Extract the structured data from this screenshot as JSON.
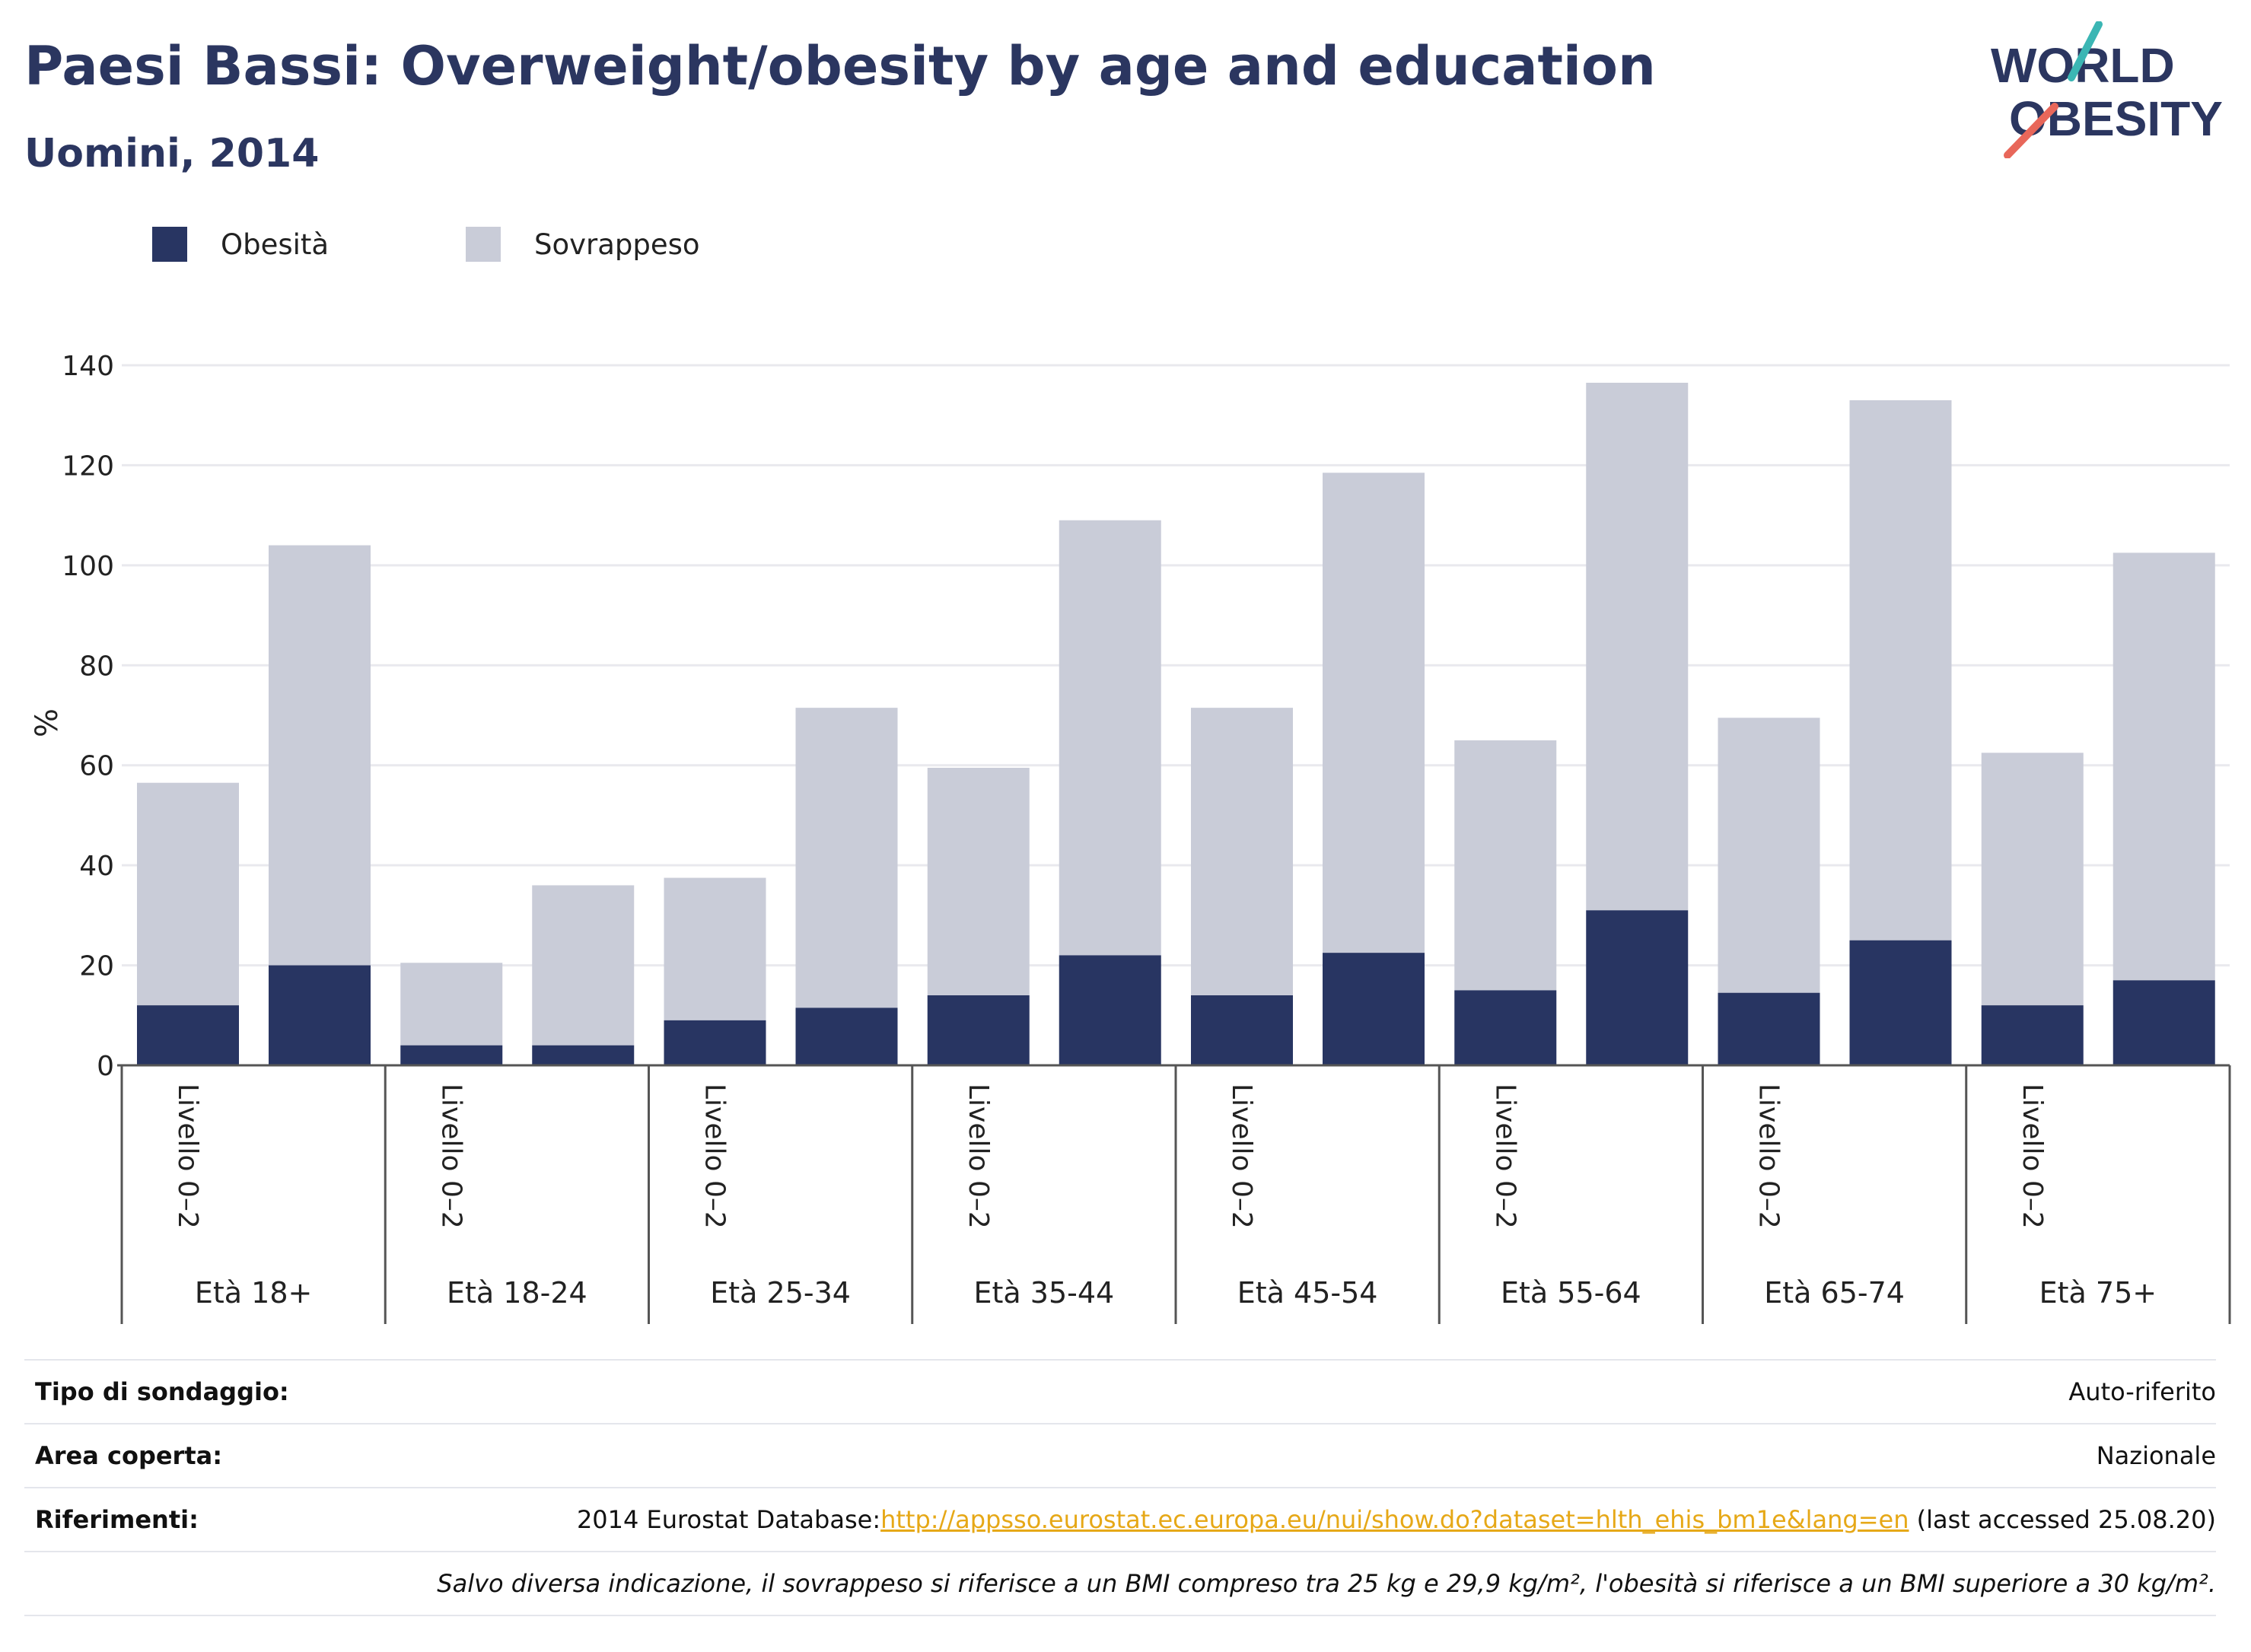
{
  "title": "Paesi Bassi: Overweight/obesity by age and education",
  "subtitle": "Uomini, 2014",
  "logo": {
    "line1": "WORLD",
    "line2": "OBESITY"
  },
  "colors": {
    "obesity": "#283562",
    "overweight": "#c9ccd8",
    "accent_teal": "#3bb6b4",
    "accent_coral": "#e8675a",
    "link": "#e6a817"
  },
  "legend": [
    {
      "label": "Obesità",
      "color": "#283562"
    },
    {
      "label": "Sovrappeso",
      "color": "#c9ccd8"
    }
  ],
  "chart_data": {
    "type": "bar",
    "stacked": true,
    "ylabel": "%",
    "ylim": [
      0,
      140
    ],
    "yticks": [
      0,
      20,
      40,
      60,
      80,
      100,
      120,
      140
    ],
    "grid": true,
    "legend_position": "top-left",
    "groups": [
      "Età 18+",
      "Età 18-24",
      "Età 25-34",
      "Età 35-44",
      "Età 45-54",
      "Età 55-64",
      "Età 65-74",
      "Età 75+"
    ],
    "categories": [
      "Livello 0–2",
      "",
      "Livello 0–2",
      "",
      "Livello 0–2",
      "",
      "Livello 0–2",
      "",
      "Livello 0–2",
      "",
      "Livello 0–2",
      "",
      "Livello 0–2",
      "",
      "Livello 0–2",
      ""
    ],
    "series": [
      {
        "name": "Obesità",
        "values": [
          12,
          20,
          4,
          4,
          9,
          11.5,
          14,
          22,
          14,
          22.5,
          15,
          31,
          14.5,
          25,
          12,
          17
        ]
      },
      {
        "name": "Sovrappeso",
        "values": [
          44.5,
          84,
          16.5,
          32,
          28.5,
          60,
          45.5,
          87,
          57.5,
          96,
          50,
          105.5,
          55,
          108,
          50.5,
          85.5
        ]
      }
    ]
  },
  "info": {
    "survey_type_label": "Tipo di sondaggio:",
    "survey_type_value": "Auto-riferito",
    "area_label": "Area coperta:",
    "area_value": "Nazionale",
    "references_label": "Riferimenti:",
    "references_prefix": "2014 Eurostat Database:",
    "references_link": "http://appsso.eurostat.ec.europa.eu/nui/show.do?dataset=hlth_ehis_bm1e&lang=en",
    "references_suffix": " (last accessed 25.08.20)",
    "note": "Salvo diversa indicazione, il sovrappeso si riferisce a un BMI compreso tra 25 kg e 29,9 kg/m², l'obesità si riferisce a un BMI superiore a 30 kg/m²."
  }
}
